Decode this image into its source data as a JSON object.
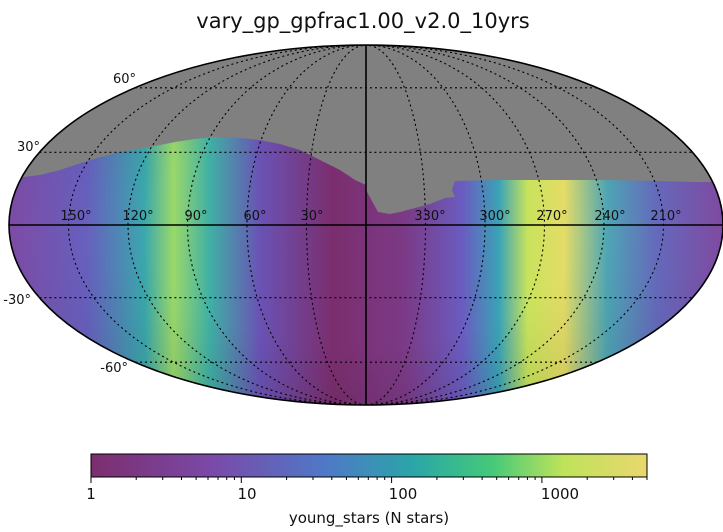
{
  "chart_data": {
    "type": "heatmap",
    "projection": "mollweide",
    "title": "vary_gp_gpfrac1.00_v2.0_10yrs",
    "colorbar": {
      "label": "young_stars (N stars)",
      "scale": "log",
      "range": [
        1,
        5000
      ],
      "tick_labels": [
        "1",
        "10",
        "100",
        "1000"
      ],
      "colormap": [
        "#7b2e6e",
        "#7a4aa8",
        "#4f78c8",
        "#2aa6a8",
        "#44c97a",
        "#bfe35a",
        "#e9d76e"
      ]
    },
    "longitude_labels": [
      "150°",
      "120°",
      "90°",
      "60°",
      "30°",
      "330°",
      "300°",
      "270°",
      "240°",
      "210°"
    ],
    "latitude_labels": [
      "60°",
      "30°",
      "-30°",
      "-60°"
    ],
    "masked_color": "#808080",
    "grid": true
  }
}
